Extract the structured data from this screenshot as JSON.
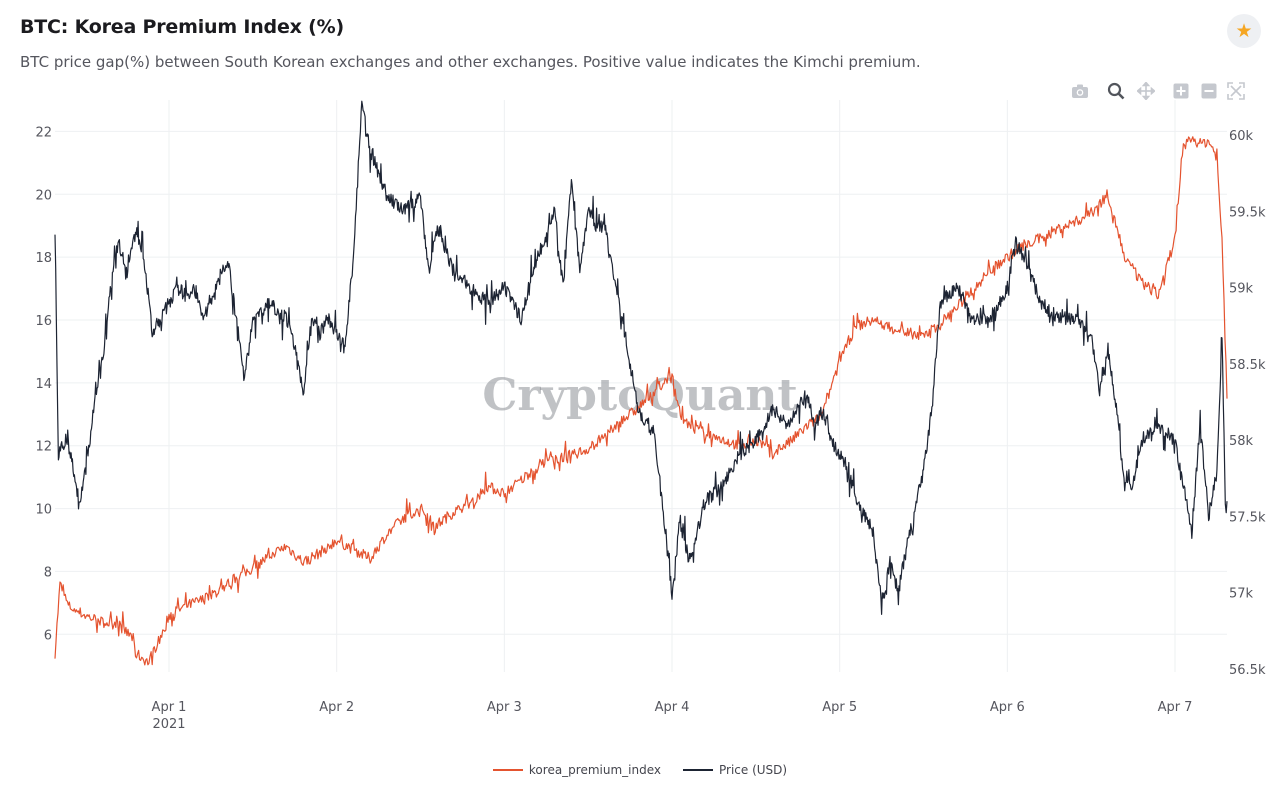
{
  "header": {
    "title": "BTC: Korea Premium Index (%)",
    "subtitle": "BTC price gap(%) between South Korean exchanges and other exchanges. Positive value indicates the Kimchi premium.",
    "favorite_icon": "star-icon"
  },
  "toolbar": {
    "buttons": [
      {
        "name": "camera-icon",
        "label": "Download plot as png"
      },
      {
        "name": "zoom-icon",
        "label": "Zoom"
      },
      {
        "name": "pan-icon",
        "label": "Pan"
      },
      {
        "name": "zoom-in-icon",
        "label": "Zoom in"
      },
      {
        "name": "zoom-out-icon",
        "label": "Zoom out"
      },
      {
        "name": "autoscale-icon",
        "label": "Autoscale"
      }
    ]
  },
  "watermark": "CryptoQuant",
  "chart_data": {
    "type": "line",
    "title": "BTC: Korea Premium Index (%)",
    "x": [
      "Apr 1",
      "Apr 2",
      "Apr 3",
      "Apr 4",
      "Apr 5",
      "Apr 6",
      "Apr 7"
    ],
    "x_year_label": "2021",
    "x_range_days": [
      -0.68,
      6.31
    ],
    "y_left": {
      "ticks": [
        6,
        8,
        10,
        12,
        14,
        16,
        18,
        20,
        22
      ],
      "range": [
        4.8,
        23.0
      ]
    },
    "y_right": {
      "ticks": [
        "56.5k",
        "57k",
        "57.5k",
        "58k",
        "58.5k",
        "59k",
        "59.5k",
        "60k"
      ],
      "tick_values": [
        56500,
        57000,
        57500,
        58000,
        58500,
        59000,
        59500,
        60000
      ],
      "range": [
        56480,
        60230
      ]
    },
    "grid": true,
    "legend_position": "bottom-center",
    "series": [
      {
        "name": "korea_premium_index",
        "axis": "left",
        "color": "#e4532f",
        "points": [
          [
            -0.68,
            5.4
          ],
          [
            -0.65,
            7.6
          ],
          [
            -0.6,
            6.9
          ],
          [
            -0.5,
            6.6
          ],
          [
            -0.4,
            6.4
          ],
          [
            -0.3,
            6.3
          ],
          [
            -0.22,
            5.9
          ],
          [
            -0.2,
            5.4
          ],
          [
            -0.12,
            5.1
          ],
          [
            -0.1,
            5.4
          ],
          [
            -0.05,
            5.9
          ],
          [
            0,
            6.6
          ],
          [
            0.1,
            6.9
          ],
          [
            0.2,
            7.1
          ],
          [
            0.3,
            7.4
          ],
          [
            0.4,
            7.8
          ],
          [
            0.5,
            8.1
          ],
          [
            0.6,
            8.5
          ],
          [
            0.7,
            8.8
          ],
          [
            0.8,
            8.3
          ],
          [
            0.9,
            8.6
          ],
          [
            1.0,
            9.0
          ],
          [
            1.1,
            8.7
          ],
          [
            1.2,
            8.4
          ],
          [
            1.3,
            9.2
          ],
          [
            1.4,
            9.7
          ],
          [
            1.5,
            10.0
          ],
          [
            1.6,
            9.5
          ],
          [
            1.7,
            9.9
          ],
          [
            1.8,
            10.2
          ],
          [
            1.9,
            10.7
          ],
          [
            2.0,
            10.5
          ],
          [
            2.1,
            10.9
          ],
          [
            2.2,
            11.4
          ],
          [
            2.3,
            11.6
          ],
          [
            2.4,
            11.7
          ],
          [
            2.5,
            11.9
          ],
          [
            2.6,
            12.3
          ],
          [
            2.7,
            12.8
          ],
          [
            2.8,
            13.2
          ],
          [
            2.9,
            13.8
          ],
          [
            3.0,
            14.2
          ],
          [
            3.05,
            13.0
          ],
          [
            3.1,
            12.6
          ],
          [
            3.2,
            12.4
          ],
          [
            3.3,
            12.2
          ],
          [
            3.4,
            12.0
          ],
          [
            3.5,
            12.2
          ],
          [
            3.6,
            11.8
          ],
          [
            3.7,
            12.1
          ],
          [
            3.8,
            12.6
          ],
          [
            3.9,
            13.0
          ],
          [
            4.0,
            14.8
          ],
          [
            4.1,
            15.8
          ],
          [
            4.2,
            16.0
          ],
          [
            4.3,
            15.8
          ],
          [
            4.4,
            15.6
          ],
          [
            4.5,
            15.5
          ],
          [
            4.6,
            15.9
          ],
          [
            4.7,
            16.4
          ],
          [
            4.8,
            17.0
          ],
          [
            4.9,
            17.6
          ],
          [
            5.0,
            18.0
          ],
          [
            5.1,
            18.4
          ],
          [
            5.2,
            18.6
          ],
          [
            5.3,
            18.9
          ],
          [
            5.4,
            19.1
          ],
          [
            5.5,
            19.4
          ],
          [
            5.6,
            20.0
          ],
          [
            5.7,
            18.0
          ],
          [
            5.8,
            17.2
          ],
          [
            5.9,
            16.8
          ],
          [
            6.0,
            18.6
          ],
          [
            6.05,
            21.5
          ],
          [
            6.1,
            21.8
          ],
          [
            6.15,
            21.6
          ],
          [
            6.2,
            21.7
          ],
          [
            6.25,
            21.2
          ],
          [
            6.28,
            18.5
          ],
          [
            6.31,
            13.5
          ]
        ]
      },
      {
        "name": "Price (USD)",
        "axis": "right",
        "color": "#1d2433",
        "points": [
          [
            -0.68,
            59450
          ],
          [
            -0.66,
            57900
          ],
          [
            -0.62,
            58000
          ],
          [
            -0.58,
            57900
          ],
          [
            -0.54,
            57550
          ],
          [
            -0.5,
            57800
          ],
          [
            -0.45,
            58200
          ],
          [
            -0.4,
            58500
          ],
          [
            -0.35,
            59000
          ],
          [
            -0.3,
            59300
          ],
          [
            -0.25,
            59100
          ],
          [
            -0.2,
            59400
          ],
          [
            -0.15,
            59200
          ],
          [
            -0.1,
            58700
          ],
          [
            -0.05,
            58800
          ],
          [
            0,
            58900
          ],
          [
            0.05,
            59000
          ],
          [
            0.1,
            58950
          ],
          [
            0.15,
            59000
          ],
          [
            0.2,
            58800
          ],
          [
            0.25,
            58900
          ],
          [
            0.35,
            59200
          ],
          [
            0.4,
            58800
          ],
          [
            0.45,
            58400
          ],
          [
            0.5,
            58800
          ],
          [
            0.6,
            58900
          ],
          [
            0.7,
            58800
          ],
          [
            0.75,
            58600
          ],
          [
            0.8,
            58300
          ],
          [
            0.85,
            58800
          ],
          [
            0.9,
            58700
          ],
          [
            0.95,
            58800
          ],
          [
            1.0,
            58700
          ],
          [
            1.05,
            58600
          ],
          [
            1.1,
            59200
          ],
          [
            1.15,
            60200
          ],
          [
            1.2,
            59900
          ],
          [
            1.3,
            59600
          ],
          [
            1.4,
            59500
          ],
          [
            1.5,
            59600
          ],
          [
            1.55,
            59100
          ],
          [
            1.6,
            59400
          ],
          [
            1.7,
            59100
          ],
          [
            1.8,
            59000
          ],
          [
            1.9,
            58900
          ],
          [
            2.0,
            59000
          ],
          [
            2.1,
            58800
          ],
          [
            2.2,
            59200
          ],
          [
            2.3,
            59500
          ],
          [
            2.35,
            59000
          ],
          [
            2.4,
            59700
          ],
          [
            2.45,
            59100
          ],
          [
            2.5,
            59500
          ],
          [
            2.55,
            59400
          ],
          [
            2.6,
            59400
          ],
          [
            2.7,
            58800
          ],
          [
            2.8,
            58200
          ],
          [
            2.9,
            58000
          ],
          [
            3.0,
            57000
          ],
          [
            3.05,
            57500
          ],
          [
            3.1,
            57200
          ],
          [
            3.2,
            57600
          ],
          [
            3.3,
            57700
          ],
          [
            3.4,
            57900
          ],
          [
            3.5,
            58000
          ],
          [
            3.6,
            58200
          ],
          [
            3.7,
            58100
          ],
          [
            3.8,
            58300
          ],
          [
            3.85,
            58100
          ],
          [
            3.9,
            58200
          ],
          [
            3.95,
            58000
          ],
          [
            4.0,
            57900
          ],
          [
            4.05,
            57800
          ],
          [
            4.1,
            57600
          ],
          [
            4.2,
            57400
          ],
          [
            4.25,
            56900
          ],
          [
            4.3,
            57200
          ],
          [
            4.35,
            57000
          ],
          [
            4.4,
            57300
          ],
          [
            4.5,
            57800
          ],
          [
            4.55,
            58200
          ],
          [
            4.6,
            58900
          ],
          [
            4.7,
            59000
          ],
          [
            4.8,
            58800
          ],
          [
            4.9,
            58800
          ],
          [
            5.0,
            59000
          ],
          [
            5.05,
            59300
          ],
          [
            5.1,
            59200
          ],
          [
            5.2,
            58900
          ],
          [
            5.3,
            58800
          ],
          [
            5.4,
            58800
          ],
          [
            5.5,
            58700
          ],
          [
            5.55,
            58300
          ],
          [
            5.6,
            58600
          ],
          [
            5.65,
            58200
          ],
          [
            5.7,
            57700
          ],
          [
            5.75,
            57700
          ],
          [
            5.8,
            58000
          ],
          [
            5.9,
            58100
          ],
          [
            6.0,
            58000
          ],
          [
            6.05,
            57700
          ],
          [
            6.1,
            57400
          ],
          [
            6.15,
            58100
          ],
          [
            6.2,
            57500
          ],
          [
            6.25,
            57800
          ],
          [
            6.28,
            58700
          ],
          [
            6.3,
            57600
          ],
          [
            6.31,
            57600
          ]
        ]
      }
    ]
  },
  "legend": {
    "items": [
      {
        "label": "korea_premium_index",
        "color": "#e4532f"
      },
      {
        "label": "Price (USD)",
        "color": "#1d2433"
      }
    ]
  }
}
